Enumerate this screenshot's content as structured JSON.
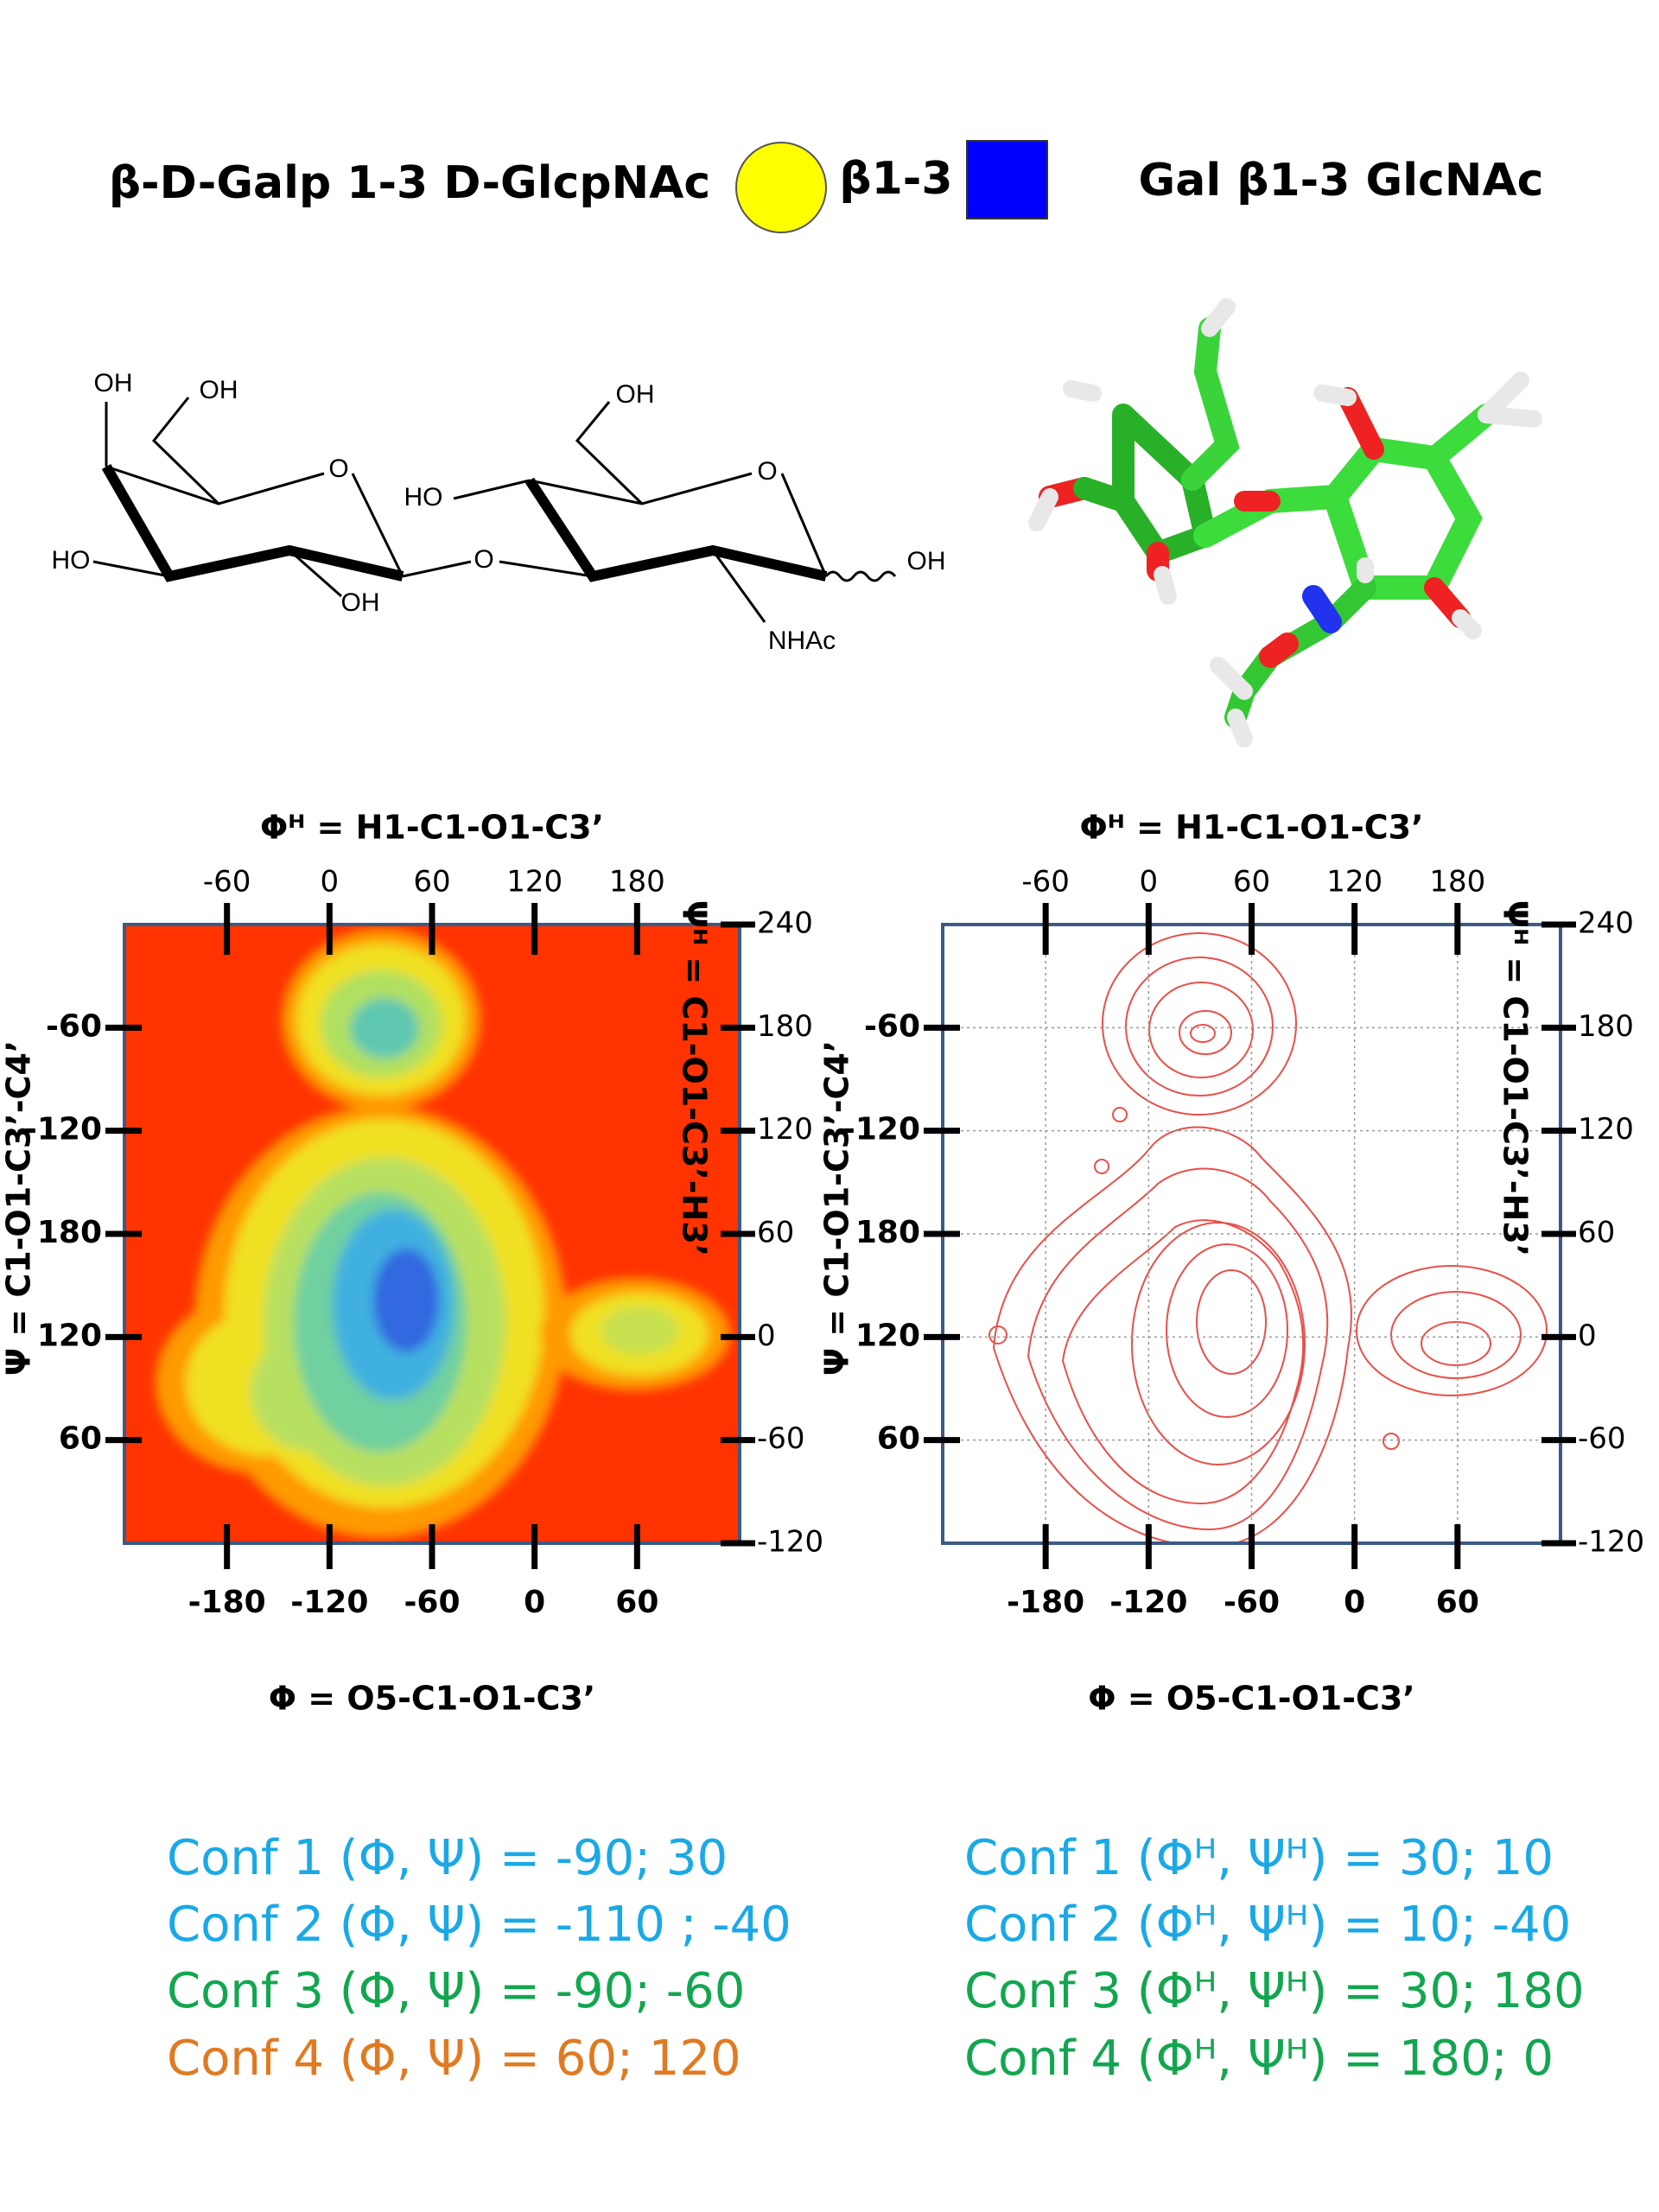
{
  "header": {
    "left": "β-D-Galp 1-3 D-GlcpNAc",
    "linkage": "β1-3",
    "right": "Gal β1-3 GlcNAc"
  },
  "structure_labels": [
    "OH",
    "OH",
    "O",
    "HO",
    "OH",
    "O",
    "HO",
    "OH",
    "O",
    "OH",
    "NHAc"
  ],
  "plots": [
    {
      "style": "heatmap",
      "grid": false,
      "title_top": "Φᴴ = H1-C1-O1-C3’",
      "title_bottom": "Φ = O5-C1-O1-C3’",
      "title_left": "Ψ = C1-O1-C3’-C4’",
      "title_right": "Ψᴴ = C1-O1-C3’-H3’",
      "xlim": [
        -240,
        120
      ],
      "xticks": [
        -180,
        -120,
        -60,
        0,
        60
      ],
      "x2lim": [
        -120,
        240
      ],
      "x2ticks": [
        -60,
        0,
        60,
        120,
        180
      ],
      "y2lim": [
        -120,
        240
      ],
      "y2ticks": [
        240,
        180,
        120,
        60,
        0,
        -60,
        -120
      ],
      "yticks": [
        -60,
        -120,
        180,
        120,
        60
      ]
    },
    {
      "style": "contour",
      "grid": true,
      "title_top": "Φᴴ = H1-C1-O1-C3’",
      "title_bottom": "Φ = O5-C1-O1-C3’",
      "title_left": "Ψ = C1-O1-C3’-C4’",
      "title_right": "Ψᴴ = C1-O1-C3’-H3’",
      "xlim": [
        -240,
        120
      ],
      "xticks": [
        -180,
        -120,
        -60,
        0,
        60
      ],
      "x2lim": [
        -120,
        240
      ],
      "x2ticks": [
        -60,
        0,
        60,
        120,
        180
      ],
      "y2lim": [
        -120,
        240
      ],
      "y2ticks": [
        240,
        180,
        120,
        60,
        0,
        -60,
        -120
      ],
      "yticks": [
        -60,
        -120,
        180,
        120,
        60
      ]
    }
  ],
  "conformations": [
    [
      {
        "text": "Conf 1 (Φ, Ψ) = -90; 30",
        "color": "#1aa9e6"
      },
      {
        "text": "Conf 2 (Φ, Ψ) =  -110 ; -40",
        "color": "#1aa9e6"
      },
      {
        "text": "Conf 3 (Φ, Ψ) =  -90;  -60",
        "color": "#13a650"
      },
      {
        "text": "Conf 4 (Φ, Ψ) =   60; 120",
        "color": "#e07a22"
      }
    ],
    [
      {
        "text": "Conf 1 (Φᴴ, Ψᴴ) = 30; 10",
        "color": "#1aa9e6"
      },
      {
        "text": "Conf 2 (Φᴴ, Ψᴴ) = 10; -40",
        "color": "#1aa9e6"
      },
      {
        "text": "Conf 3 (Φᴴ, Ψᴴ) = 30; 180",
        "color": "#13a650"
      },
      {
        "text": "Conf 4 (Φᴴ, Ψᴴ) = 180; 0",
        "color": "#13a650"
      }
    ]
  ]
}
